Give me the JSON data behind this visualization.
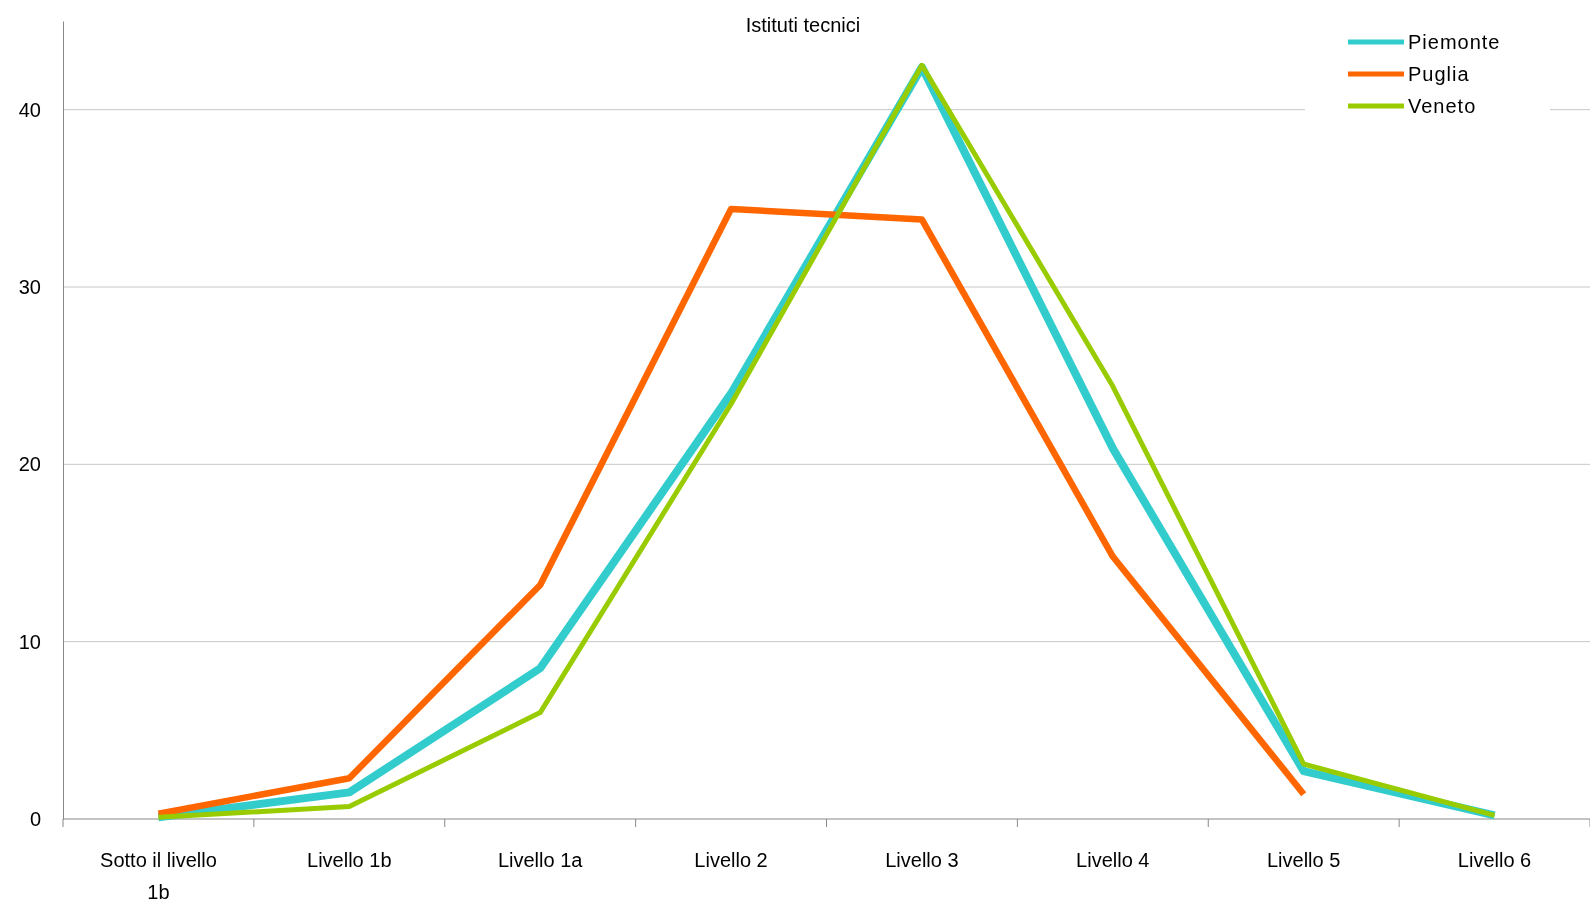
{
  "chart_data": {
    "type": "line",
    "title": "Istituti tecnici",
    "categories": [
      "Sotto il livello 1b",
      "Livello 1b",
      "Livello 1a",
      "Livello 2",
      "Livello 3",
      "Livello 4",
      "Livello 5",
      "Livello 6"
    ],
    "series": [
      {
        "name": "Piemonte",
        "color": "#33cccc",
        "values": [
          0.1,
          1.5,
          8.5,
          24.0,
          42.4,
          20.9,
          2.7,
          0.2
        ]
      },
      {
        "name": "Puglia",
        "color": "#ff6600",
        "values": [
          0.3,
          2.3,
          13.2,
          34.4,
          33.8,
          14.8,
          1.4,
          null
        ]
      },
      {
        "name": "Veneto",
        "color": "#99cc00",
        "values": [
          0.1,
          0.7,
          6.0,
          23.4,
          42.5,
          24.4,
          3.1,
          0.2
        ]
      }
    ],
    "ylim": [
      0,
      45
    ],
    "yticks": [
      0,
      10,
      20,
      30,
      40
    ],
    "grid": "y",
    "legend": "top right",
    "marker": "none",
    "line_style": "solid"
  }
}
